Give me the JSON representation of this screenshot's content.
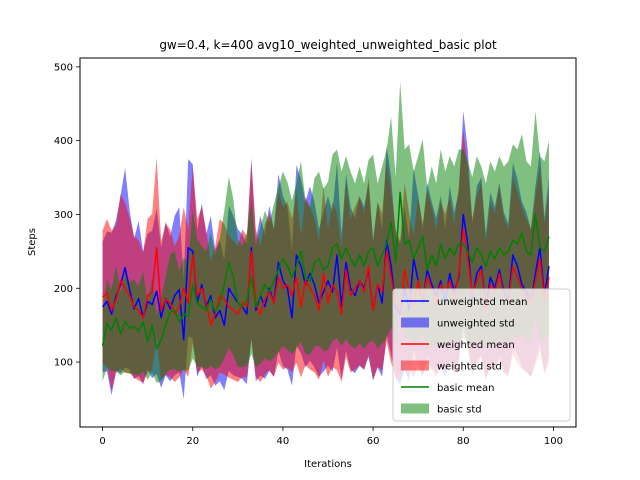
{
  "chart_data": {
    "type": "line",
    "title": "gw=0.4, k=400 avg10_weighted_unweighted_basic plot",
    "xlabel": "Iterations",
    "ylabel": "Steps",
    "xlim": [
      -5,
      105
    ],
    "ylim": [
      12,
      512
    ],
    "xticks": [
      0,
      20,
      40,
      60,
      80,
      100
    ],
    "yticks": [
      100,
      200,
      300,
      400,
      500
    ],
    "grid": false,
    "legend_position": "lower-right",
    "x": [
      0,
      1,
      2,
      3,
      4,
      5,
      6,
      7,
      8,
      9,
      10,
      11,
      12,
      13,
      14,
      15,
      16,
      17,
      18,
      19,
      20,
      21,
      22,
      23,
      24,
      25,
      26,
      27,
      28,
      29,
      30,
      31,
      32,
      33,
      34,
      35,
      36,
      37,
      38,
      39,
      40,
      41,
      42,
      43,
      44,
      45,
      46,
      47,
      48,
      49,
      50,
      51,
      52,
      53,
      54,
      55,
      56,
      57,
      58,
      59,
      60,
      61,
      62,
      63,
      64,
      65,
      66,
      67,
      68,
      69,
      70,
      71,
      72,
      73,
      74,
      75,
      76,
      77,
      78,
      79,
      80,
      81,
      82,
      83,
      84,
      85,
      86,
      87,
      88,
      89,
      90,
      91,
      92,
      93,
      94,
      95,
      96,
      97,
      98,
      99
    ],
    "series": [
      {
        "name": "unweighted",
        "color": "#0000ff",
        "fill_alpha": 0.5,
        "mean_label": "unweighted mean",
        "std_label": "unweighted std",
        "mean": [
          175,
          182,
          165,
          190,
          205,
          228,
          198,
          172,
          186,
          160,
          182,
          178,
          196,
          160,
          186,
          172,
          190,
          198,
          130,
          255,
          250,
          180,
          205,
          175,
          190,
          160,
          170,
          150,
          200,
          190,
          180,
          175,
          165,
          255,
          170,
          190,
          175,
          200,
          180,
          235,
          210,
          200,
          160,
          245,
          230,
          205,
          220,
          205,
          180,
          195,
          210,
          195,
          245,
          175,
          235,
          200,
          190,
          210,
          200,
          225,
          170,
          205,
          180,
          265,
          230,
          175,
          165,
          200,
          170,
          240,
          210,
          180,
          225,
          205,
          190,
          210,
          180,
          220,
          195,
          215,
          300,
          260,
          185,
          220,
          230,
          175,
          215,
          200,
          225,
          195,
          185,
          245,
          230,
          205,
          195,
          180,
          220,
          255,
          190,
          230
        ],
        "std": [
          88,
          95,
          110,
          102,
          120,
          135,
          108,
          95,
          105,
          90,
          92,
          100,
          112,
          95,
          104,
          98,
          108,
          112,
          80,
          120,
          118,
          100,
          110,
          98,
          108,
          92,
          96,
          88,
          112,
          108,
          100,
          98,
          95,
          122,
          96,
          108,
          98,
          112,
          100,
          120,
          115,
          110,
          92,
          122,
          118,
          112,
          118,
          112,
          100,
          108,
          115,
          108,
          125,
          98,
          120,
          110,
          105,
          115,
          110,
          118,
          95,
          112,
          100,
          128,
          120,
          98,
          95,
          110,
          96,
          122,
          115,
          100,
          118,
          112,
          105,
          115,
          100,
          118,
          108,
          115,
          140,
          128,
          102,
          118,
          120,
          98,
          115,
          110,
          118,
          108,
          102,
          125,
          118,
          112,
          108,
          100,
          118,
          130,
          105,
          120
        ]
      },
      {
        "name": "weighted",
        "color": "#ff0000",
        "fill_alpha": 0.5,
        "mean_label": "weighted mean",
        "std_label": "weighted std",
        "mean": [
          188,
          194,
          170,
          185,
          210,
          200,
          190,
          175,
          170,
          160,
          190,
          195,
          255,
          170,
          185,
          180,
          165,
          175,
          200,
          180,
          245,
          190,
          200,
          180,
          150,
          165,
          190,
          185,
          175,
          170,
          165,
          180,
          175,
          250,
          180,
          165,
          185,
          195,
          180,
          215,
          200,
          205,
          190,
          215,
          175,
          210,
          200,
          190,
          170,
          220,
          180,
          205,
          195,
          165,
          225,
          190,
          200,
          210,
          195,
          230,
          170,
          205,
          195,
          250,
          215,
          180,
          170,
          225,
          195,
          175,
          210,
          185,
          215,
          200,
          180,
          205,
          195,
          210,
          185,
          220,
          280,
          240,
          190,
          210,
          225,
          170,
          205,
          195,
          220,
          190,
          180,
          230,
          215,
          200,
          190,
          180,
          210,
          240,
          185,
          215
        ],
        "std": [
          90,
          100,
          108,
          100,
          118,
          115,
          105,
          96,
          95,
          88,
          104,
          106,
          122,
          94,
          102,
          100,
          92,
          96,
          110,
          100,
          120,
          104,
          110,
          98,
          86,
          92,
          104,
          102,
          96,
          94,
          92,
          100,
          96,
          120,
          100,
          92,
          102,
          106,
          100,
          116,
          110,
          112,
          104,
          116,
          96,
          114,
          110,
          104,
          94,
          118,
          100,
          112,
          106,
          92,
          118,
          104,
          110,
          114,
          106,
          120,
          94,
          112,
          106,
          122,
          116,
          100,
          94,
          118,
          106,
          96,
          114,
          102,
          116,
          110,
          100,
          112,
          106,
          114,
          102,
          118,
          134,
          124,
          104,
          114,
          118,
          94,
          112,
          106,
          118,
          104,
          100,
          120,
          116,
          110,
          104,
          100,
          114,
          124,
          102,
          116
        ]
      },
      {
        "name": "basic",
        "color": "#008000",
        "fill_alpha": 0.5,
        "mean_label": "basic mean",
        "std_label": "basic std",
        "mean": [
          122,
          152,
          143,
          160,
          138,
          155,
          146,
          148,
          142,
          155,
          128,
          150,
          118,
          130,
          150,
          168,
          170,
          155,
          165,
          162,
          205,
          180,
          175,
          170,
          185,
          168,
          180,
          205,
          235,
          215,
          180,
          175,
          185,
          215,
          175,
          190,
          205,
          195,
          210,
          225,
          240,
          230,
          215,
          230,
          250,
          215,
          210,
          235,
          240,
          225,
          230,
          255,
          260,
          240,
          255,
          240,
          230,
          245,
          230,
          250,
          255,
          230,
          245,
          260,
          290,
          235,
          330,
          260,
          265,
          240,
          255,
          270,
          225,
          245,
          230,
          260,
          240,
          255,
          245,
          260,
          260,
          250,
          235,
          255,
          245,
          230,
          250,
          240,
          255,
          245,
          250,
          265,
          260,
          275,
          250,
          245,
          300,
          255,
          250,
          270
        ],
        "std": [
          48,
          60,
          55,
          72,
          56,
          68,
          62,
          64,
          60,
          68,
          52,
          64,
          46,
          56,
          66,
          78,
          80,
          68,
          76,
          74,
          100,
          86,
          82,
          80,
          90,
          78,
          86,
          100,
          116,
          106,
          86,
          82,
          90,
          104,
          82,
          92,
          100,
          94,
          104,
          112,
          118,
          114,
          104,
          112,
          122,
          104,
          100,
          114,
          118,
          110,
          114,
          126,
          128,
          118,
          124,
          118,
          112,
          120,
          112,
          124,
          126,
          112,
          120,
          128,
          142,
          116,
          150,
          128,
          130,
          118,
          124,
          132,
          110,
          120,
          112,
          128,
          118,
          124,
          120,
          128,
          128,
          122,
          116,
          124,
          120,
          112,
          122,
          118,
          124,
          120,
          122,
          130,
          128,
          134,
          122,
          120,
          140,
          124,
          122,
          130
        ]
      }
    ]
  }
}
